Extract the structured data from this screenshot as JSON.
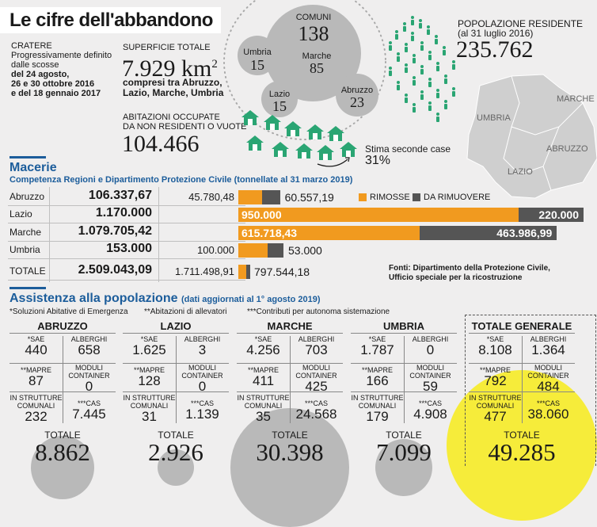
{
  "header": {
    "title": "Le cifre dell'abbandono",
    "cratere_label": "CRATERE",
    "cratere_desc": "Progressivamente definito dalle scosse",
    "cratere_dates_1": "del 24 agosto,",
    "cratere_dates_2": "26 e 30 ottobre 2016",
    "cratere_dates_3": "e del 18 gennaio 2017"
  },
  "superficie": {
    "label": "SUPERFICIE TOTALE",
    "value": "7.929 km",
    "exp": "2",
    "desc_1": "compresi tra Abruzzo,",
    "desc_2": "Lazio, Marche, Umbria"
  },
  "abitazioni": {
    "label_1": "ABITAZIONI OCCUPATE",
    "label_2": "DA NON RESIDENTI O VUOTE",
    "value": "104.466",
    "stima_label": "Stima seconde case",
    "stima_value": "31%"
  },
  "comuni": {
    "total_label": "COMUNI",
    "total_value": "138",
    "regions": [
      {
        "name": "Umbria",
        "value": "15"
      },
      {
        "name": "Marche",
        "value": "85"
      },
      {
        "name": "Lazio",
        "value": "15"
      },
      {
        "name": "Abruzzo",
        "value": "23"
      }
    ]
  },
  "popolazione": {
    "label_1": "POPOLAZIONE RESIDENTE",
    "label_2": "(al 31 luglio 2016)",
    "value": "235.762"
  },
  "map": {
    "labels": [
      "MARCHE",
      "UMBRIA",
      "ABRUZZO",
      "LAZIO"
    ]
  },
  "macerie": {
    "title": "Macerie",
    "subtitle": "Competenza Regioni e Dipartimento Protezione Civile (tonnellate al 31 marzo 2019)",
    "legend_rimosse": "RIMOSSE",
    "legend_da_rimuovere": "DA RIMUOVERE",
    "colors": {
      "rimosse": "#f19a1f",
      "da_rimuovere": "#555555"
    },
    "rows": [
      {
        "region": "Abruzzo",
        "total": "106.337,67",
        "rimosse": "45.780,48",
        "da_rimuovere": "60.557,19",
        "rimosse_n": 45780.48,
        "da_rimuovere_n": 60557.19
      },
      {
        "region": "Lazio",
        "total": "1.170.000",
        "rimosse": "950.000",
        "da_rimuovere": "220.000",
        "rimosse_n": 950000,
        "da_rimuovere_n": 220000
      },
      {
        "region": "Marche",
        "total": "1.079.705,42",
        "rimosse": "615.718,43",
        "da_rimuovere": "463.986,99",
        "rimosse_n": 615718.43,
        "da_rimuovere_n": 463986.99
      },
      {
        "region": "Umbria",
        "total": "153.000",
        "rimosse": "100.000",
        "da_rimuovere": "53.000",
        "rimosse_n": 100000,
        "da_rimuovere_n": 53000
      },
      {
        "region": "TOTALE",
        "total": "2.509.043,09",
        "rimosse": "1.711.498,91",
        "da_rimuovere": "797.544,18",
        "rimosse_n": 1711498.91,
        "da_rimuovere_n": 797544.18
      }
    ],
    "fonti_1": "Fonti: Dipartimento della Protezione Civile,",
    "fonti_2": "Ufficio speciale per la ricostruzione"
  },
  "assistenza": {
    "title": "Assistenza alla popolazione",
    "title_note": "(dati aggiornati al 1° agosto 2019)",
    "note_1": "*Soluzioni Abitative di Emergenza",
    "note_2": "**Abitazioni di allevatori",
    "note_3": "***Contributi per autonoma sistemazione",
    "labels": {
      "sae": "*SAE",
      "alberghi": "ALBERGHI",
      "mapre": "**MAPRE",
      "moduli_1": "MODULI",
      "moduli_2": "CONTAINER",
      "strutture_1": "IN STRUTTURE",
      "strutture_2": "COMUNALI",
      "cas": "***CAS",
      "totale": "TOTALE"
    },
    "areas": [
      {
        "name": "ABRUZZO",
        "sae": "440",
        "alberghi": "658",
        "mapre": "87",
        "moduli": "0",
        "strutture": "232",
        "cas": "7.445",
        "totale": "8.862"
      },
      {
        "name": "LAZIO",
        "sae": "1.625",
        "alberghi": "3",
        "mapre": "128",
        "moduli": "0",
        "strutture": "31",
        "cas": "1.139",
        "totale": "2.926"
      },
      {
        "name": "MARCHE",
        "sae": "4.256",
        "alberghi": "703",
        "mapre": "411",
        "moduli": "425",
        "strutture": "35",
        "cas": "24.568",
        "totale": "30.398"
      },
      {
        "name": "UMBRIA",
        "sae": "1.787",
        "alberghi": "0",
        "mapre": "166",
        "moduli": "59",
        "strutture": "179",
        "cas": "4.908",
        "totale": "7.099"
      },
      {
        "name": "TOTALE GENERALE",
        "sae": "8.108",
        "alberghi": "1.364",
        "mapre": "792",
        "moduli": "484",
        "strutture": "477",
        "cas": "38.060",
        "totale": "49.285"
      }
    ],
    "highlight_color": "#f6ec3a"
  }
}
